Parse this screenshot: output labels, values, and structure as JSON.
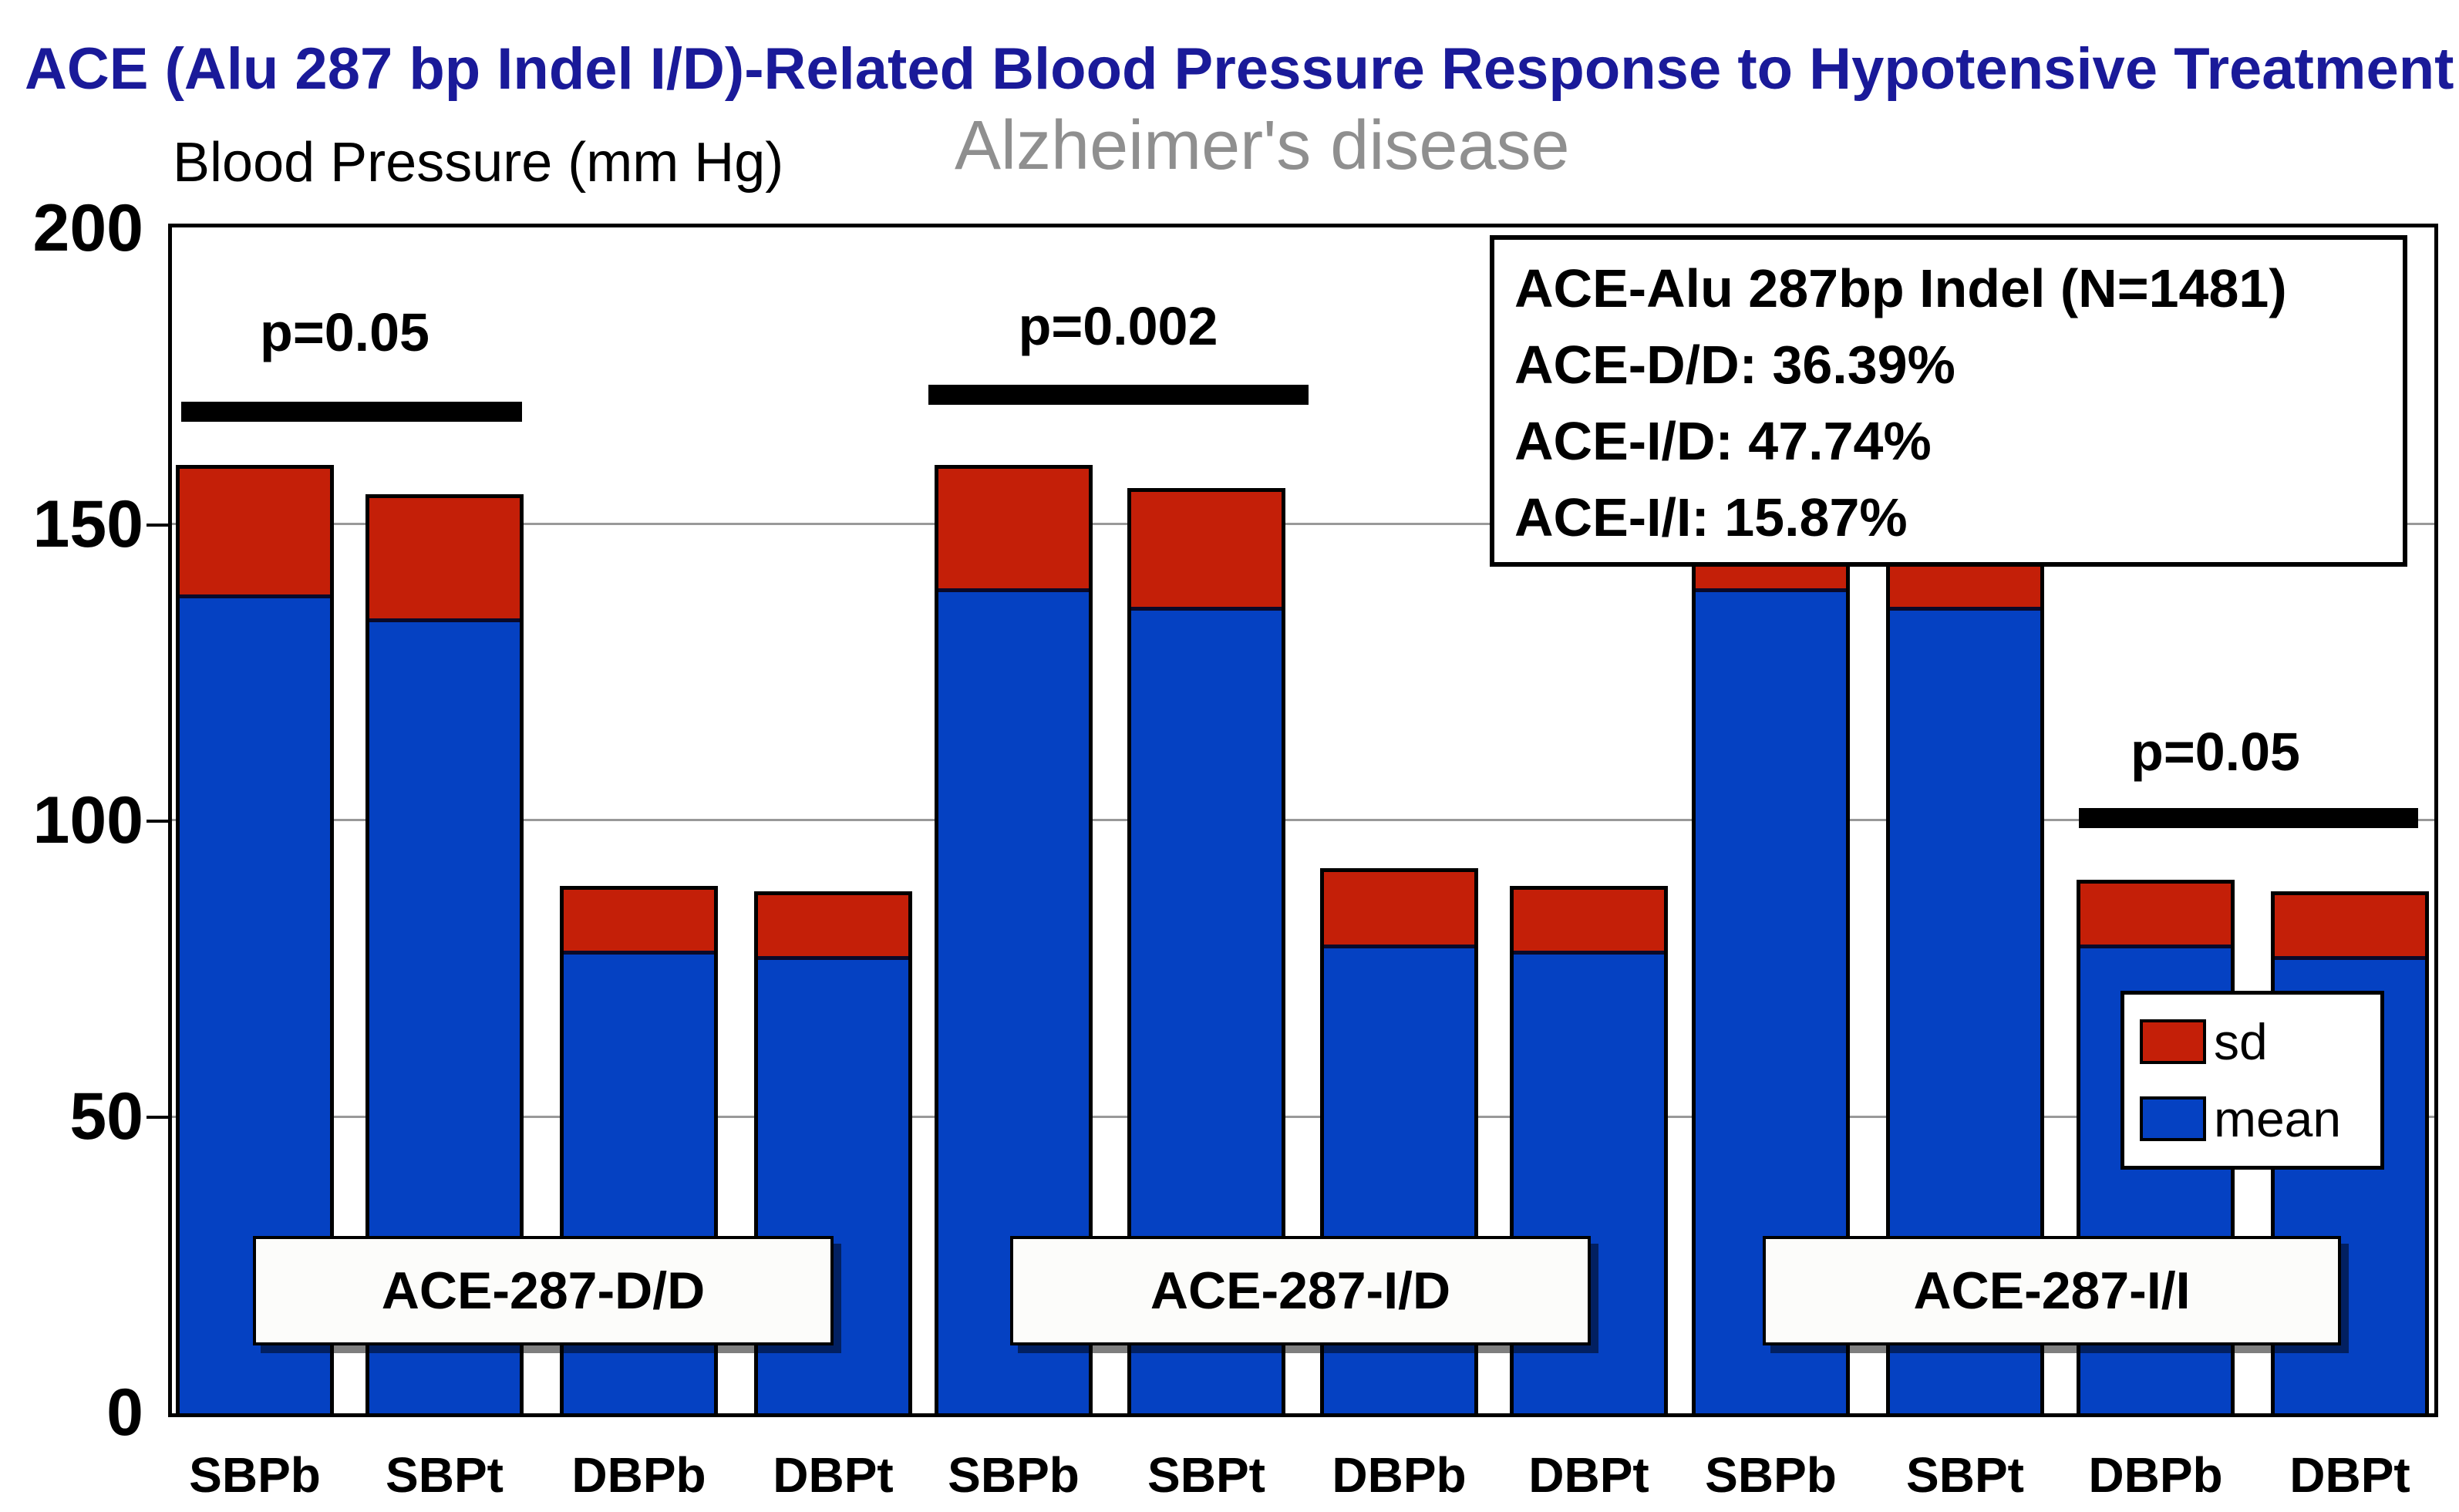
{
  "chart_data": {
    "type": "bar",
    "stacked": true,
    "title": "ACE (Alu 287 bp Indel I/D)-Related Blood Pressure Response to Hypotensive Treatment",
    "subtitle": "Alzheimer's disease",
    "ylabel": "Blood Pressure (mm Hg)",
    "ylim": [
      0,
      200
    ],
    "yticks": [
      200,
      150,
      100,
      50,
      0
    ],
    "ytick_labels": [
      "200",
      "150",
      "100",
      "50",
      "0"
    ],
    "grid": "horizontal gridlines at 50, 100, 150",
    "categories": [
      "SBPb",
      "SBPt",
      "DBPb",
      "DBPt"
    ],
    "legend": {
      "position": "inside lower right",
      "items": [
        {
          "label": "sd",
          "color": "#C41F08"
        },
        {
          "label": "mean",
          "color": "#0541C2"
        }
      ]
    },
    "groups": [
      {
        "label": "ACE-287-D/D",
        "significance": {
          "text": "p=0.05",
          "over": [
            "SBPb",
            "SBPt"
          ],
          "line_y_value": 168
        },
        "bars": [
          {
            "x": "SBPb",
            "mean": 138,
            "sd": 22
          },
          {
            "x": "SBPt",
            "mean": 134,
            "sd": 21
          },
          {
            "x": "DBPb",
            "mean": 78,
            "sd": 11
          },
          {
            "x": "DBPt",
            "mean": 77,
            "sd": 11
          }
        ]
      },
      {
        "label": "ACE-287-I/D",
        "significance": {
          "text": "p=0.002",
          "over": [
            "SBPb",
            "SBPt"
          ],
          "line_y_value": 171
        },
        "bars": [
          {
            "x": "SBPb",
            "mean": 139,
            "sd": 21
          },
          {
            "x": "SBPt",
            "mean": 136,
            "sd": 20
          },
          {
            "x": "DBPb",
            "mean": 79,
            "sd": 13
          },
          {
            "x": "DBPt",
            "mean": 78,
            "sd": 11
          }
        ]
      },
      {
        "label": "ACE-287-I/I",
        "significance": {
          "text": "p=0.05",
          "over": [
            "DBPb",
            "DBPt"
          ],
          "line_y_value": 100
        },
        "bars": [
          {
            "x": "SBPb",
            "mean": 139,
            "sd": 21
          },
          {
            "x": "SBPt",
            "mean": 136,
            "sd": 19
          },
          {
            "x": "DBPb",
            "mean": 79,
            "sd": 11
          },
          {
            "x": "DBPt",
            "mean": 77,
            "sd": 11
          }
        ]
      }
    ],
    "info_box": {
      "lines": [
        "ACE-Alu 287bp Indel (N=1481)",
        "ACE-D/D: 36.39%",
        "ACE-I/D: 47.74%",
        "ACE-I/I: 15.87%"
      ]
    },
    "colors": {
      "title": "#1A1A99",
      "subtitle": "#8F8F8F",
      "mean": "#0541C2",
      "sd": "#C41F08",
      "grid": "#999999"
    }
  }
}
